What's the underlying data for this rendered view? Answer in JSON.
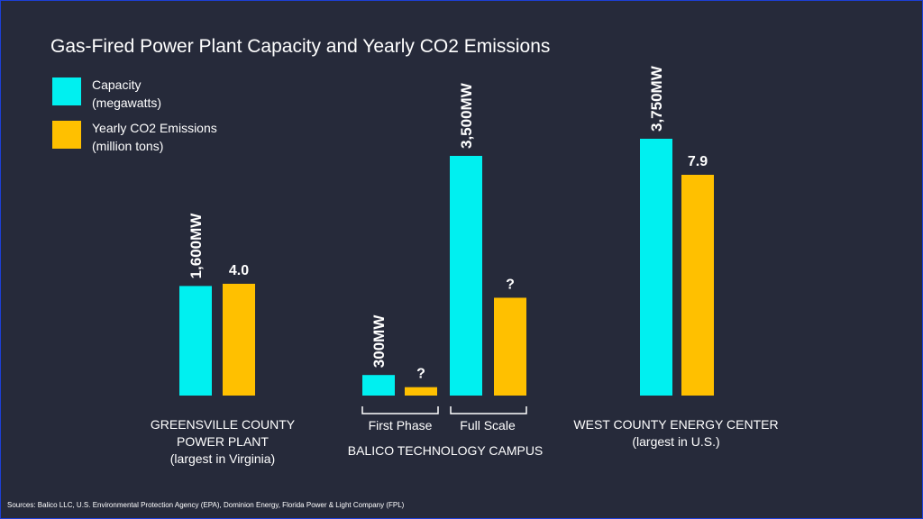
{
  "title": "Gas-Fired Power Plant Capacity and Yearly CO2 Emissions",
  "legend": [
    {
      "line1": "Capacity",
      "line2": "(megawatts)",
      "color": "#00f0f0"
    },
    {
      "line1": "Yearly CO2 Emissions",
      "line2": "(million tons)",
      "color": "#ffc000"
    }
  ],
  "groups": [
    {
      "line1": "GREENSVILLE COUNTY",
      "line2": "POWER PLANT",
      "line3": "(largest in  Virginia)"
    },
    {
      "line1": "BALICO TECHNOLOGY CAMPUS",
      "sub1": "First Phase",
      "sub2": "Full Scale"
    },
    {
      "line1": "WEST COUNTY ENERGY CENTER",
      "line2": "(largest in U.S.)"
    }
  ],
  "sources": "Sources: Balico LLC, U.S. Environmental Protection Agency (EPA), Dominion Energy, Florida Power & Light Company (FPL)",
  "chart_data": {
    "type": "bar",
    "title": "Gas-Fired Power Plant Capacity and Yearly CO2 Emissions",
    "categories": [
      "Greensville County Power Plant",
      "Balico First Phase",
      "Balico Full Scale",
      "West County Energy Center"
    ],
    "series": [
      {
        "name": "Capacity (megawatts)",
        "color": "#00f0f0",
        "values": [
          1600,
          300,
          3500,
          3750
        ],
        "labels": [
          "1,600MW",
          "300MW",
          "3,500MW",
          "3,750MW"
        ]
      },
      {
        "name": "Yearly CO2 Emissions (million tons)",
        "color": "#ffc000",
        "values": [
          4.0,
          0.3,
          3.5,
          7.9
        ],
        "labels": [
          "4.0",
          "?",
          "?",
          "7.9"
        ]
      }
    ],
    "xlabel": "",
    "ylabel": "",
    "grid": false,
    "legend_position": "top-left"
  }
}
